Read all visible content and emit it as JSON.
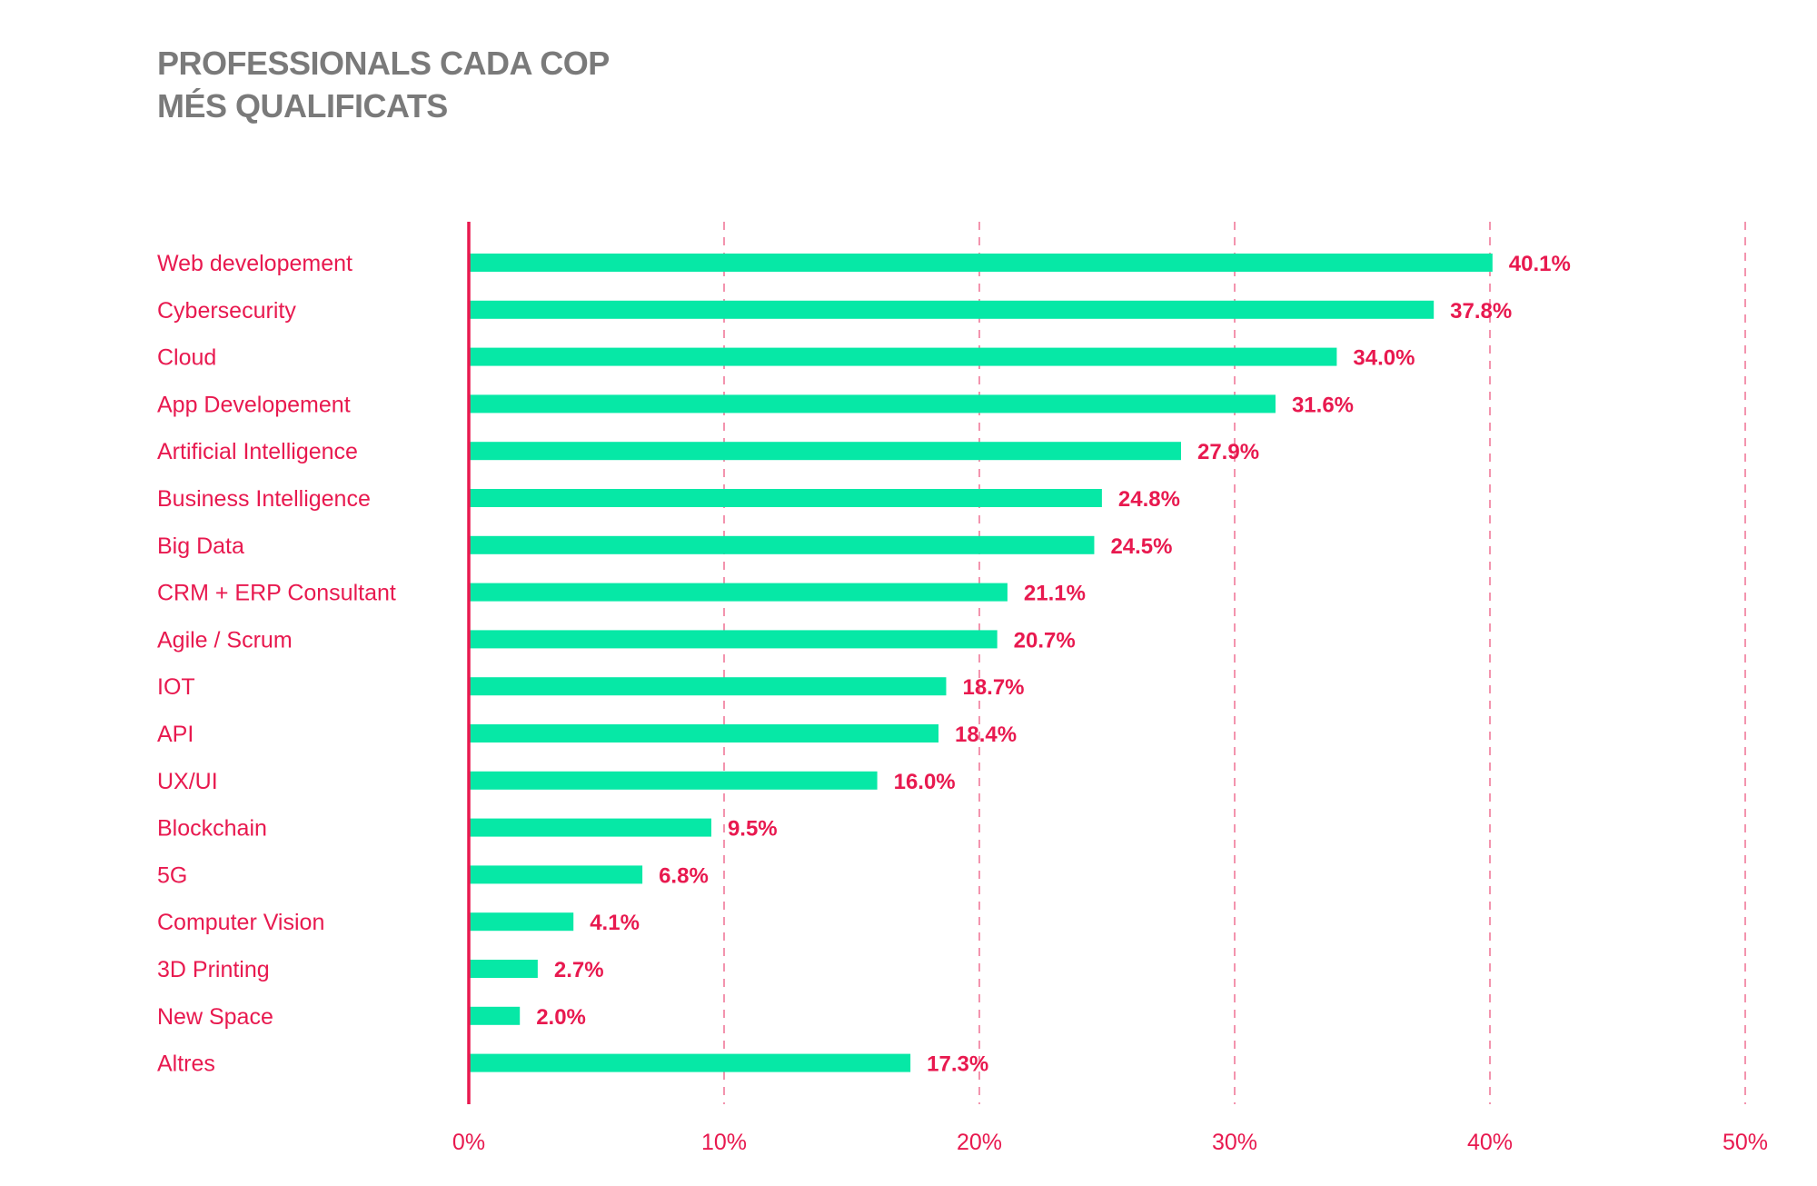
{
  "title_lines": [
    "PROFESSIONALS CADA COP",
    "MÉS QUALIFICATS"
  ],
  "colors": {
    "bar": "#06e8a6",
    "accent": "#e8194f",
    "title": "#7a7a7a",
    "grid": "#f07a9a"
  },
  "chart_data": {
    "type": "bar",
    "orientation": "horizontal",
    "title": "PROFESSIONALS CADA COP MÉS QUALIFICATS",
    "categories": [
      "Web developement",
      "Cybersecurity",
      "Cloud",
      "App Developement",
      "Artificial Intelligence",
      "Business Intelligence",
      "Big Data",
      "CRM + ERP Consultant",
      "Agile / Scrum",
      "IOT",
      "API",
      "UX/UI",
      "Blockchain",
      "5G",
      "Computer Vision",
      "3D Printing",
      "New Space",
      "Altres"
    ],
    "values": [
      40.1,
      37.8,
      34.0,
      31.6,
      27.9,
      24.8,
      24.5,
      21.1,
      20.7,
      18.7,
      18.4,
      16.0,
      9.5,
      6.8,
      4.1,
      2.7,
      2.0,
      17.3
    ],
    "value_labels": [
      "40.1%",
      "37.8%",
      "34.0%",
      "31.6%",
      "27.9%",
      "24.8%",
      "24.5%",
      "21.1%",
      "20.7%",
      "18.7%",
      "18.4%",
      "16.0%",
      "9.5%",
      "6.8%",
      "4.1%",
      "2.7%",
      "2.0%",
      "17.3%"
    ],
    "xlim": [
      0,
      50
    ],
    "x_ticks": [
      0,
      10,
      20,
      30,
      40,
      50
    ],
    "x_tick_labels": [
      "0%",
      "10%",
      "20%",
      "30%",
      "40%",
      "50%"
    ],
    "grid": "vertical dashed",
    "xlabel": "",
    "ylabel": ""
  }
}
